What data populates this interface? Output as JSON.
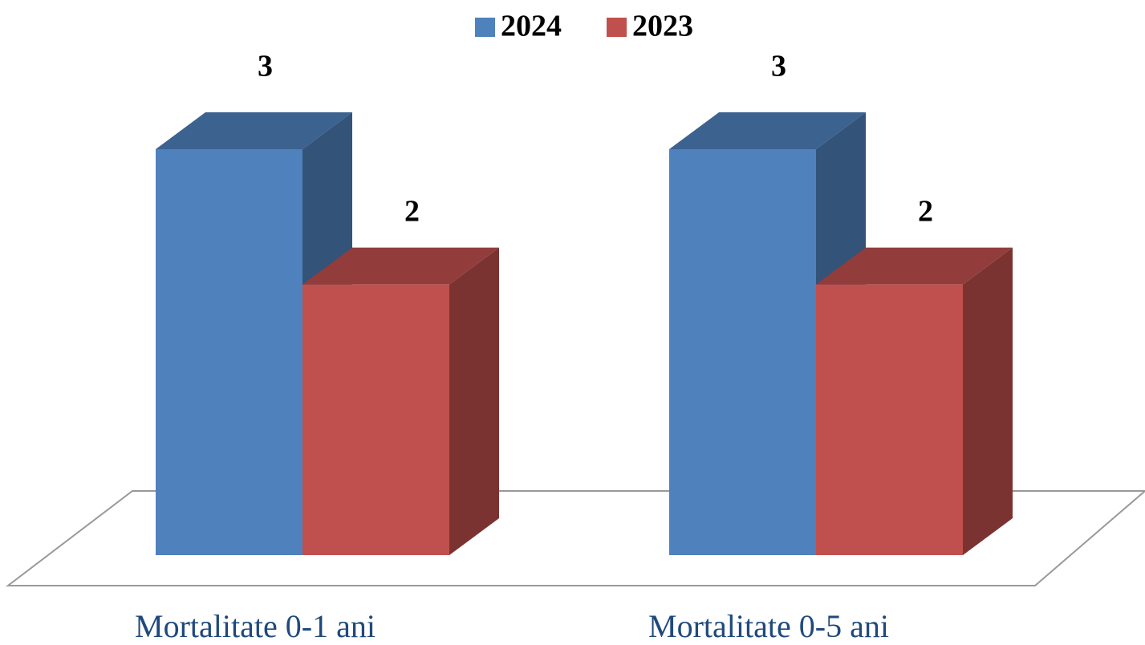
{
  "chart_data": {
    "type": "bar3d",
    "categories": [
      "Mortalitate 0-1 ani",
      "Mortalitate 0-5 ani"
    ],
    "series": [
      {
        "name": "2024",
        "color": "#4f81bd",
        "values": [
          3,
          3
        ]
      },
      {
        "name": "2023",
        "color": "#c0504d",
        "values": [
          2,
          2
        ]
      }
    ],
    "legend": "top"
  }
}
